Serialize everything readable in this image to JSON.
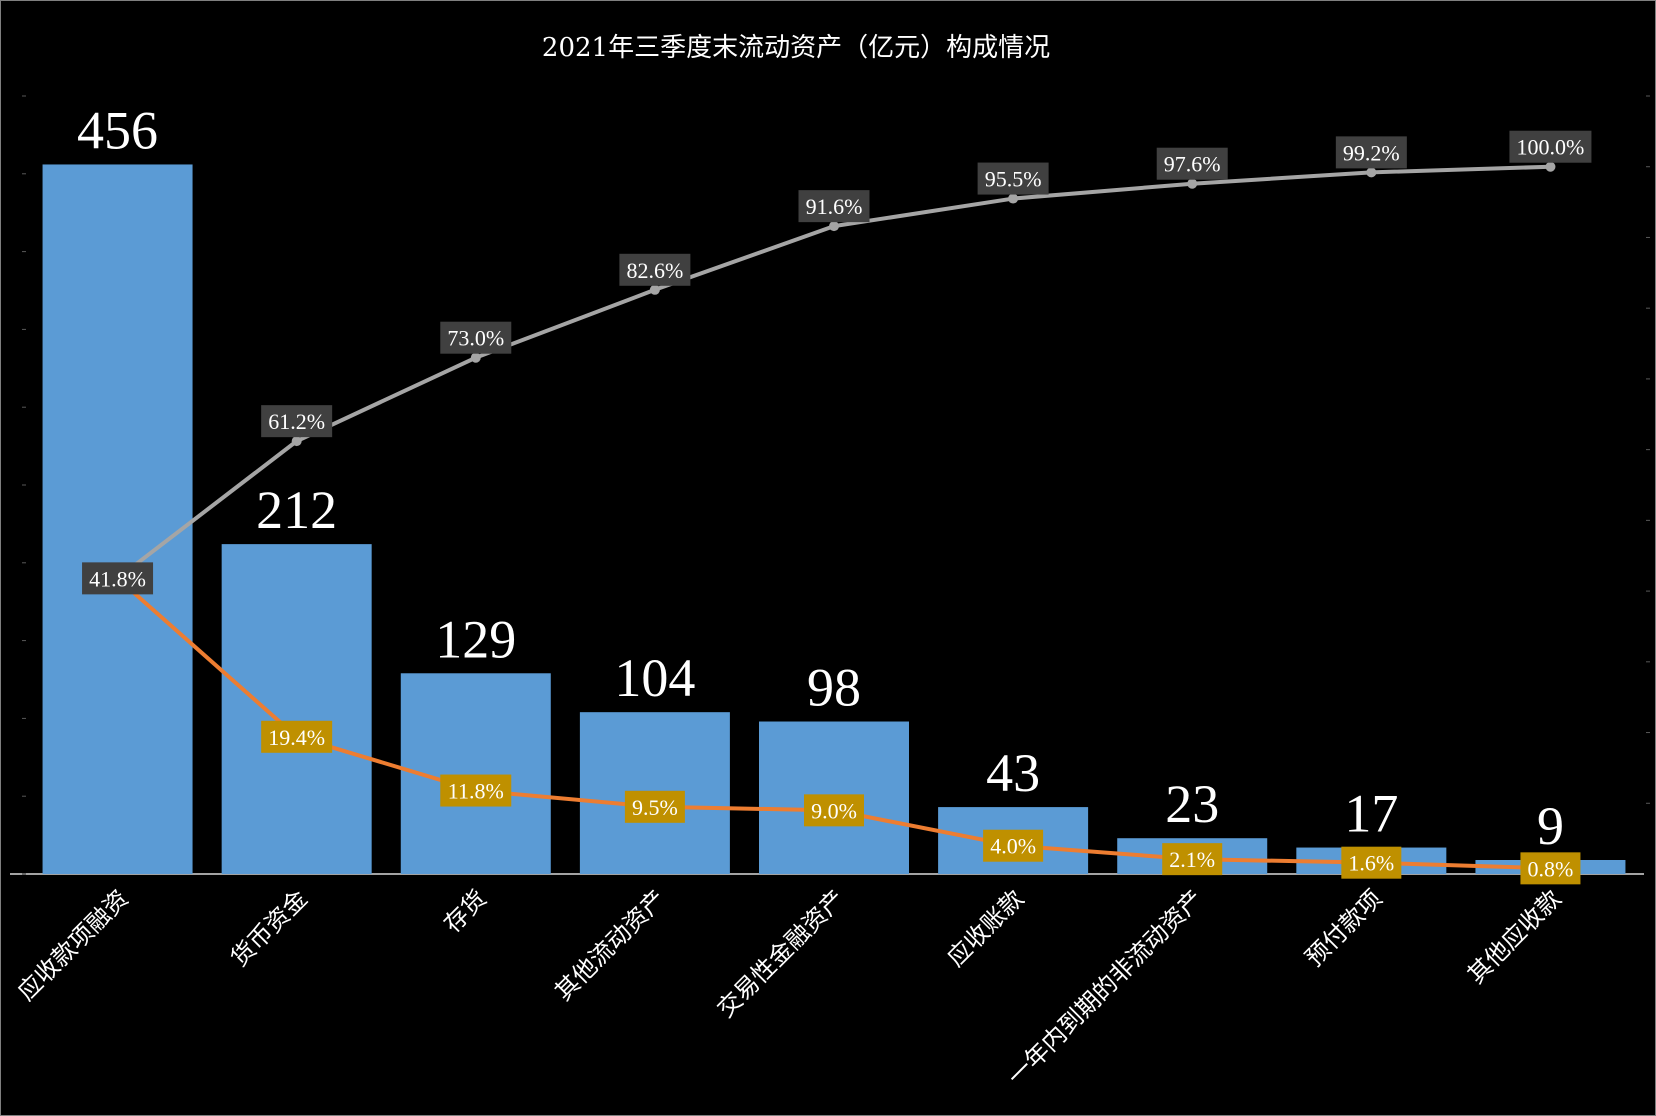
{
  "chart_data": {
    "type": "bar",
    "title": "2021年三季度末流动资产（亿元）构成情况",
    "categories": [
      "应收款项融资",
      "货币资金",
      "存货",
      "其他流动资产",
      "交易性金融资产",
      "应收账款",
      "一年内到期的非流动资产",
      "预付款项",
      "其他应收款"
    ],
    "series": [
      {
        "type": "bar",
        "values": [
          456,
          212,
          129,
          104,
          98,
          43,
          23,
          17,
          9
        ]
      },
      {
        "type": "line",
        "axis": "secondary",
        "values": [
          41.8,
          19.4,
          11.8,
          9.5,
          9.0,
          4.0,
          2.1,
          1.6,
          0.8
        ],
        "labels": [
          "41.8%",
          "19.4%",
          "11.8%",
          "9.5%",
          "9.0%",
          "4.0%",
          "2.1%",
          "1.6%",
          "0.8%"
        ]
      },
      {
        "type": "line",
        "axis": "secondary",
        "values": [
          41.8,
          61.2,
          73.0,
          82.6,
          91.6,
          95.5,
          97.6,
          99.2,
          100.0
        ],
        "labels": [
          "41.8%",
          "61.2%",
          "73.0%",
          "82.6%",
          "91.6%",
          "95.5%",
          "97.6%",
          "99.2%",
          "100.0%"
        ]
      }
    ],
    "ylim": [
      0,
      500
    ],
    "y2lim": [
      0,
      110
    ],
    "grid": false,
    "legend": "none",
    "colors": {
      "background": "#000000",
      "bar": "#5b9bd5",
      "share_line": "#ed7d31",
      "share_label_bg": "#bf9000",
      "cumulative_line": "#a5a5a5",
      "cumulative_label_bg": "#404040",
      "text": "#ffffff"
    }
  }
}
